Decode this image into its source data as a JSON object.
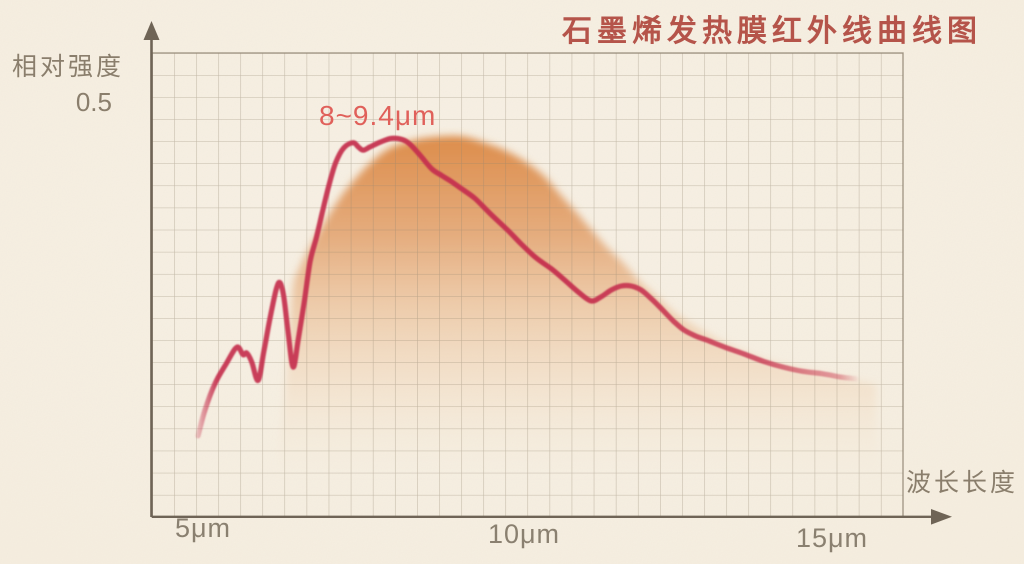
{
  "title": "石墨烯发热膜红外线曲线图",
  "annotation": "8~9.4μm",
  "y_axis": {
    "label": "相对强度",
    "reference_tick": "0.5"
  },
  "x_axis": {
    "label": "波长长度",
    "ticks": [
      "5μm",
      "10μm",
      "15μm"
    ]
  },
  "colors": {
    "background": "#f6eee1",
    "grid_line": "#90836d",
    "axis": "#6f6456",
    "title_text": "#b5544a",
    "label_text": "#8a7e6c",
    "annotation_text": "#e0605a",
    "curve": "#c5304e",
    "envelope_top": "#db8742"
  },
  "chart_data": {
    "type": "line",
    "title": "石墨烯发热膜红外线曲线图",
    "xlabel": "波长长度",
    "ylabel": "相对强度",
    "x_unit": "μm",
    "x_ticks": [
      5,
      10,
      15
    ],
    "xlim": [
      4.2,
      16.2
    ],
    "ylim": [
      0,
      0.56
    ],
    "y_reference": 0.5,
    "grid": true,
    "legend": false,
    "annotation": {
      "text": "8~9.4μm",
      "x_range_um": [
        8,
        9.4
      ]
    },
    "series": [
      {
        "name": "infrared-intensity-curve",
        "style": "jagged red line",
        "points": [
          [
            4.92,
            0.098
          ],
          [
            5.03,
            0.129
          ],
          [
            5.19,
            0.161
          ],
          [
            5.37,
            0.185
          ],
          [
            5.54,
            0.205
          ],
          [
            5.64,
            0.196
          ],
          [
            5.7,
            0.198
          ],
          [
            5.78,
            0.187
          ],
          [
            5.88,
            0.165
          ],
          [
            5.97,
            0.199
          ],
          [
            6.07,
            0.24
          ],
          [
            6.17,
            0.275
          ],
          [
            6.23,
            0.283
          ],
          [
            6.29,
            0.266
          ],
          [
            6.36,
            0.223
          ],
          [
            6.44,
            0.181
          ],
          [
            6.52,
            0.214
          ],
          [
            6.61,
            0.256
          ],
          [
            6.71,
            0.308
          ],
          [
            6.81,
            0.337
          ],
          [
            6.9,
            0.366
          ],
          [
            7.01,
            0.4
          ],
          [
            7.12,
            0.428
          ],
          [
            7.25,
            0.446
          ],
          [
            7.4,
            0.452
          ],
          [
            7.48,
            0.447
          ],
          [
            7.56,
            0.443
          ],
          [
            7.67,
            0.447
          ],
          [
            7.81,
            0.452
          ],
          [
            7.99,
            0.457
          ],
          [
            8.12,
            0.457
          ],
          [
            8.24,
            0.454
          ],
          [
            8.35,
            0.447
          ],
          [
            8.5,
            0.434
          ],
          [
            8.66,
            0.42
          ],
          [
            8.8,
            0.413
          ],
          [
            8.95,
            0.406
          ],
          [
            9.12,
            0.397
          ],
          [
            9.34,
            0.385
          ],
          [
            9.58,
            0.367
          ],
          [
            9.86,
            0.347
          ],
          [
            10.08,
            0.33
          ],
          [
            10.32,
            0.313
          ],
          [
            10.56,
            0.3
          ],
          [
            10.78,
            0.286
          ],
          [
            10.99,
            0.272
          ],
          [
            11.2,
            0.261
          ],
          [
            11.36,
            0.266
          ],
          [
            11.52,
            0.274
          ],
          [
            11.68,
            0.279
          ],
          [
            11.84,
            0.279
          ],
          [
            12.0,
            0.274
          ],
          [
            12.17,
            0.263
          ],
          [
            12.33,
            0.251
          ],
          [
            12.51,
            0.237
          ],
          [
            12.68,
            0.226
          ],
          [
            12.86,
            0.219
          ],
          [
            13.07,
            0.213
          ],
          [
            13.34,
            0.205
          ],
          [
            13.64,
            0.197
          ],
          [
            13.95,
            0.188
          ],
          [
            14.27,
            0.181
          ],
          [
            14.58,
            0.176
          ],
          [
            14.9,
            0.173
          ],
          [
            15.19,
            0.169
          ],
          [
            15.43,
            0.167
          ]
        ]
      },
      {
        "name": "background-envelope-area",
        "style": "smooth orange gradient mound",
        "points": [
          [
            6.2,
            0.075
          ],
          [
            6.3,
            0.14
          ],
          [
            6.37,
            0.21
          ],
          [
            6.44,
            0.278
          ],
          [
            6.55,
            0.302
          ],
          [
            6.71,
            0.326
          ],
          [
            6.87,
            0.347
          ],
          [
            7.03,
            0.367
          ],
          [
            7.24,
            0.391
          ],
          [
            7.46,
            0.411
          ],
          [
            7.72,
            0.431
          ],
          [
            7.99,
            0.446
          ],
          [
            8.31,
            0.454
          ],
          [
            8.58,
            0.458
          ],
          [
            8.9,
            0.46
          ],
          [
            9.19,
            0.459
          ],
          [
            9.5,
            0.452
          ],
          [
            9.82,
            0.443
          ],
          [
            10.11,
            0.431
          ],
          [
            10.43,
            0.413
          ],
          [
            10.7,
            0.39
          ],
          [
            10.94,
            0.37
          ],
          [
            11.18,
            0.349
          ],
          [
            11.45,
            0.326
          ],
          [
            11.71,
            0.307
          ],
          [
            11.98,
            0.284
          ],
          [
            12.25,
            0.266
          ],
          [
            12.51,
            0.248
          ],
          [
            12.78,
            0.234
          ],
          [
            13.05,
            0.222
          ],
          [
            13.31,
            0.211
          ],
          [
            13.66,
            0.199
          ],
          [
            14.06,
            0.188
          ],
          [
            14.54,
            0.179
          ],
          [
            15.02,
            0.171
          ],
          [
            15.42,
            0.165
          ],
          [
            15.75,
            0.16
          ]
        ]
      }
    ]
  }
}
